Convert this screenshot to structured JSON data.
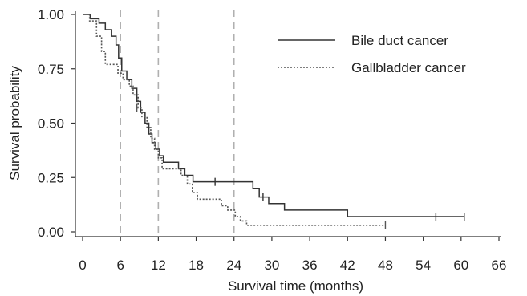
{
  "chart_data": {
    "type": "line",
    "title": "",
    "xlabel": "Survival time (months)",
    "ylabel": "Survival probability",
    "xlim": [
      0,
      66
    ],
    "ylim": [
      0,
      1
    ],
    "x_ticks": [
      0,
      6,
      12,
      18,
      24,
      30,
      36,
      42,
      48,
      54,
      60,
      66
    ],
    "y_ticks": [
      0,
      0.25,
      0.5,
      0.75,
      1
    ],
    "x_tick_labels": [
      "0",
      "6",
      "12",
      "18",
      "24",
      "30",
      "36",
      "42",
      "48",
      "54",
      "60",
      "66"
    ],
    "y_tick_labels": [
      "0.00",
      "0.25",
      "0.50",
      "0.75",
      "1.00"
    ],
    "reference_lines_x": [
      6,
      12,
      24
    ],
    "legend_position": "top-right",
    "grid": false,
    "series": [
      {
        "name": "Bile duct cancer",
        "style": "solid",
        "color": "#333333",
        "steps": [
          [
            0,
            1.0
          ],
          [
            1.2,
            0.98
          ],
          [
            2.6,
            0.96
          ],
          [
            3.6,
            0.93
          ],
          [
            4.6,
            0.9
          ],
          [
            5.3,
            0.86
          ],
          [
            5.7,
            0.8
          ],
          [
            6.2,
            0.74
          ],
          [
            7.0,
            0.7
          ],
          [
            7.8,
            0.66
          ],
          [
            8.6,
            0.6
          ],
          [
            9.2,
            0.55
          ],
          [
            9.9,
            0.5
          ],
          [
            10.5,
            0.45
          ],
          [
            11.0,
            0.41
          ],
          [
            11.6,
            0.38
          ],
          [
            12.2,
            0.35
          ],
          [
            12.8,
            0.32
          ],
          [
            15.2,
            0.29
          ],
          [
            16.2,
            0.26
          ],
          [
            17.5,
            0.23
          ],
          [
            27.0,
            0.2
          ],
          [
            28.0,
            0.16
          ],
          [
            29.5,
            0.13
          ],
          [
            32.0,
            0.1
          ],
          [
            42.0,
            0.07
          ],
          [
            60.5,
            0.07
          ]
        ],
        "censored": [
          [
            21.0,
            0.23
          ],
          [
            28.6,
            0.16
          ],
          [
            56.0,
            0.07
          ],
          [
            60.5,
            0.07
          ]
        ]
      },
      {
        "name": "Gallbladder cancer",
        "style": "dotted",
        "color": "#555555",
        "steps": [
          [
            0,
            1.0
          ],
          [
            1.1,
            0.97
          ],
          [
            2.2,
            0.9
          ],
          [
            3.0,
            0.83
          ],
          [
            3.6,
            0.77
          ],
          [
            5.6,
            0.73
          ],
          [
            6.4,
            0.7
          ],
          [
            7.4,
            0.67
          ],
          [
            8.0,
            0.63
          ],
          [
            8.8,
            0.57
          ],
          [
            9.4,
            0.53
          ],
          [
            10.2,
            0.48
          ],
          [
            10.8,
            0.43
          ],
          [
            11.4,
            0.38
          ],
          [
            12.0,
            0.34
          ],
          [
            12.6,
            0.29
          ],
          [
            15.6,
            0.26
          ],
          [
            16.6,
            0.22
          ],
          [
            17.4,
            0.18
          ],
          [
            18.2,
            0.15
          ],
          [
            22.0,
            0.12
          ],
          [
            23.0,
            0.1
          ],
          [
            24.2,
            0.07
          ],
          [
            25.0,
            0.05
          ],
          [
            26.0,
            0.03
          ],
          [
            48.0,
            0.03
          ]
        ],
        "censored": [
          [
            8.6,
            0.57
          ],
          [
            48.0,
            0.03
          ]
        ]
      }
    ]
  }
}
